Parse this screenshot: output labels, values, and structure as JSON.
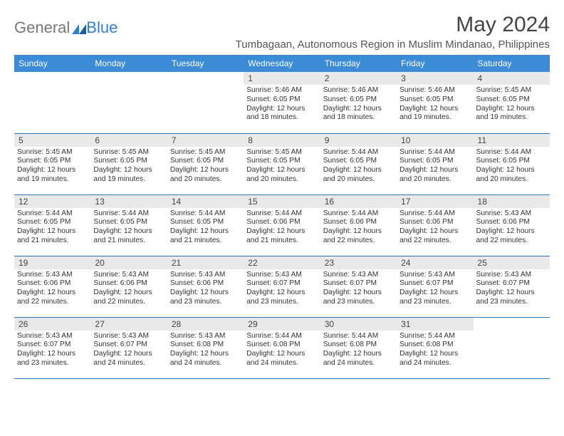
{
  "logo": {
    "text_general": "General",
    "text_blue": "Blue"
  },
  "title": "May 2024",
  "location": "Tumbagaan, Autonomous Region in Muslim Mindanao, Philippines",
  "colors": {
    "header_bg": "#3b8bd6",
    "header_text": "#ffffff",
    "daynum_bg": "#e9e9e9",
    "row_border": "#2a77c2",
    "logo_accent": "#2f7fd1"
  },
  "weekdays": [
    "Sunday",
    "Monday",
    "Tuesday",
    "Wednesday",
    "Thursday",
    "Friday",
    "Saturday"
  ],
  "weeks": [
    [
      null,
      null,
      null,
      {
        "n": "1",
        "sr": "5:46 AM",
        "ss": "6:05 PM",
        "dl": "12 hours and 18 minutes."
      },
      {
        "n": "2",
        "sr": "5:46 AM",
        "ss": "6:05 PM",
        "dl": "12 hours and 18 minutes."
      },
      {
        "n": "3",
        "sr": "5:46 AM",
        "ss": "6:05 PM",
        "dl": "12 hours and 19 minutes."
      },
      {
        "n": "4",
        "sr": "5:45 AM",
        "ss": "6:05 PM",
        "dl": "12 hours and 19 minutes."
      }
    ],
    [
      {
        "n": "5",
        "sr": "5:45 AM",
        "ss": "6:05 PM",
        "dl": "12 hours and 19 minutes."
      },
      {
        "n": "6",
        "sr": "5:45 AM",
        "ss": "6:05 PM",
        "dl": "12 hours and 19 minutes."
      },
      {
        "n": "7",
        "sr": "5:45 AM",
        "ss": "6:05 PM",
        "dl": "12 hours and 20 minutes."
      },
      {
        "n": "8",
        "sr": "5:45 AM",
        "ss": "6:05 PM",
        "dl": "12 hours and 20 minutes."
      },
      {
        "n": "9",
        "sr": "5:44 AM",
        "ss": "6:05 PM",
        "dl": "12 hours and 20 minutes."
      },
      {
        "n": "10",
        "sr": "5:44 AM",
        "ss": "6:05 PM",
        "dl": "12 hours and 20 minutes."
      },
      {
        "n": "11",
        "sr": "5:44 AM",
        "ss": "6:05 PM",
        "dl": "12 hours and 20 minutes."
      }
    ],
    [
      {
        "n": "12",
        "sr": "5:44 AM",
        "ss": "6:05 PM",
        "dl": "12 hours and 21 minutes."
      },
      {
        "n": "13",
        "sr": "5:44 AM",
        "ss": "6:05 PM",
        "dl": "12 hours and 21 minutes."
      },
      {
        "n": "14",
        "sr": "5:44 AM",
        "ss": "6:05 PM",
        "dl": "12 hours and 21 minutes."
      },
      {
        "n": "15",
        "sr": "5:44 AM",
        "ss": "6:06 PM",
        "dl": "12 hours and 21 minutes."
      },
      {
        "n": "16",
        "sr": "5:44 AM",
        "ss": "6:06 PM",
        "dl": "12 hours and 22 minutes."
      },
      {
        "n": "17",
        "sr": "5:44 AM",
        "ss": "6:06 PM",
        "dl": "12 hours and 22 minutes."
      },
      {
        "n": "18",
        "sr": "5:43 AM",
        "ss": "6:06 PM",
        "dl": "12 hours and 22 minutes."
      }
    ],
    [
      {
        "n": "19",
        "sr": "5:43 AM",
        "ss": "6:06 PM",
        "dl": "12 hours and 22 minutes."
      },
      {
        "n": "20",
        "sr": "5:43 AM",
        "ss": "6:06 PM",
        "dl": "12 hours and 22 minutes."
      },
      {
        "n": "21",
        "sr": "5:43 AM",
        "ss": "6:06 PM",
        "dl": "12 hours and 23 minutes."
      },
      {
        "n": "22",
        "sr": "5:43 AM",
        "ss": "6:07 PM",
        "dl": "12 hours and 23 minutes."
      },
      {
        "n": "23",
        "sr": "5:43 AM",
        "ss": "6:07 PM",
        "dl": "12 hours and 23 minutes."
      },
      {
        "n": "24",
        "sr": "5:43 AM",
        "ss": "6:07 PM",
        "dl": "12 hours and 23 minutes."
      },
      {
        "n": "25",
        "sr": "5:43 AM",
        "ss": "6:07 PM",
        "dl": "12 hours and 23 minutes."
      }
    ],
    [
      {
        "n": "26",
        "sr": "5:43 AM",
        "ss": "6:07 PM",
        "dl": "12 hours and 23 minutes."
      },
      {
        "n": "27",
        "sr": "5:43 AM",
        "ss": "6:07 PM",
        "dl": "12 hours and 24 minutes."
      },
      {
        "n": "28",
        "sr": "5:43 AM",
        "ss": "6:08 PM",
        "dl": "12 hours and 24 minutes."
      },
      {
        "n": "29",
        "sr": "5:44 AM",
        "ss": "6:08 PM",
        "dl": "12 hours and 24 minutes."
      },
      {
        "n": "30",
        "sr": "5:44 AM",
        "ss": "6:08 PM",
        "dl": "12 hours and 24 minutes."
      },
      {
        "n": "31",
        "sr": "5:44 AM",
        "ss": "6:08 PM",
        "dl": "12 hours and 24 minutes."
      },
      null
    ]
  ],
  "labels": {
    "sunrise": "Sunrise:",
    "sunset": "Sunset:",
    "daylight": "Daylight:"
  }
}
